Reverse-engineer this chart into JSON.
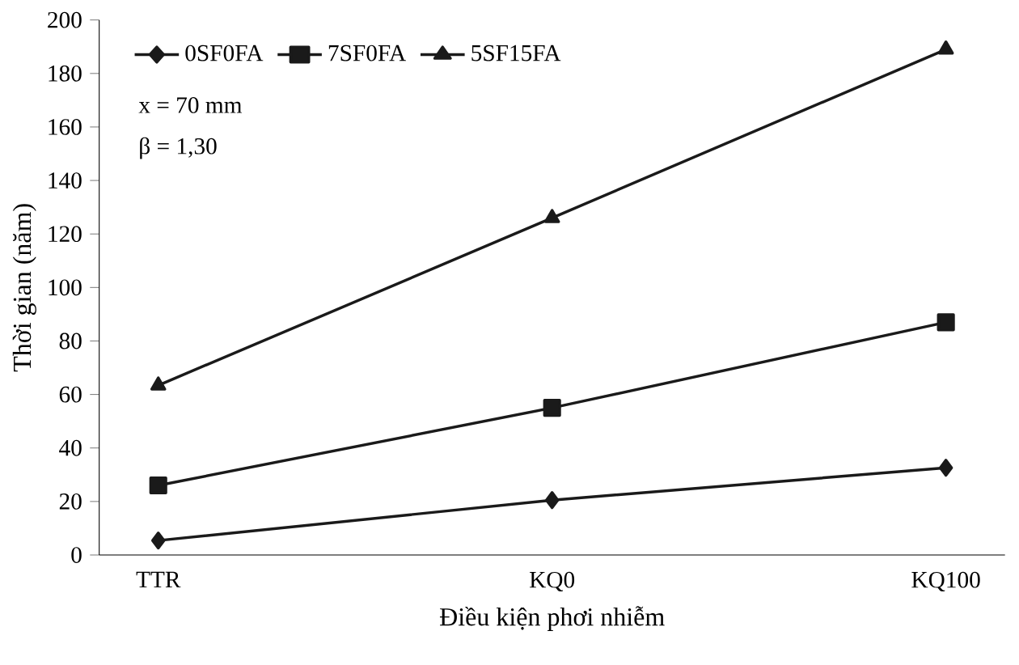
{
  "chart_data": {
    "type": "line",
    "xlabel": "Điều kiện phơi nhiễm",
    "ylabel": "Thời gian (năm)",
    "categories": [
      "TTR",
      "KQ0",
      "KQ100"
    ],
    "series": [
      {
        "name": "0SF0FA",
        "color": "#1a1a1a",
        "marker": "diamond",
        "values": [
          5.4,
          20.5,
          32.6
        ]
      },
      {
        "name": "7SF0FA",
        "color": "#1a1a1a",
        "marker": "square",
        "values": [
          26,
          55,
          87
        ]
      },
      {
        "name": "5SF15FA",
        "color": "#1a1a1a",
        "marker": "triangle",
        "values": [
          63.4,
          126,
          189
        ]
      }
    ],
    "ylim": [
      0,
      200
    ],
    "yticks": [
      0,
      20,
      40,
      60,
      80,
      100,
      120,
      140,
      160,
      180,
      200
    ],
    "legend": "top left",
    "grid": false,
    "line_style": "solid",
    "annotations": [
      "x = 70 mm",
      "β = 1,30"
    ]
  }
}
